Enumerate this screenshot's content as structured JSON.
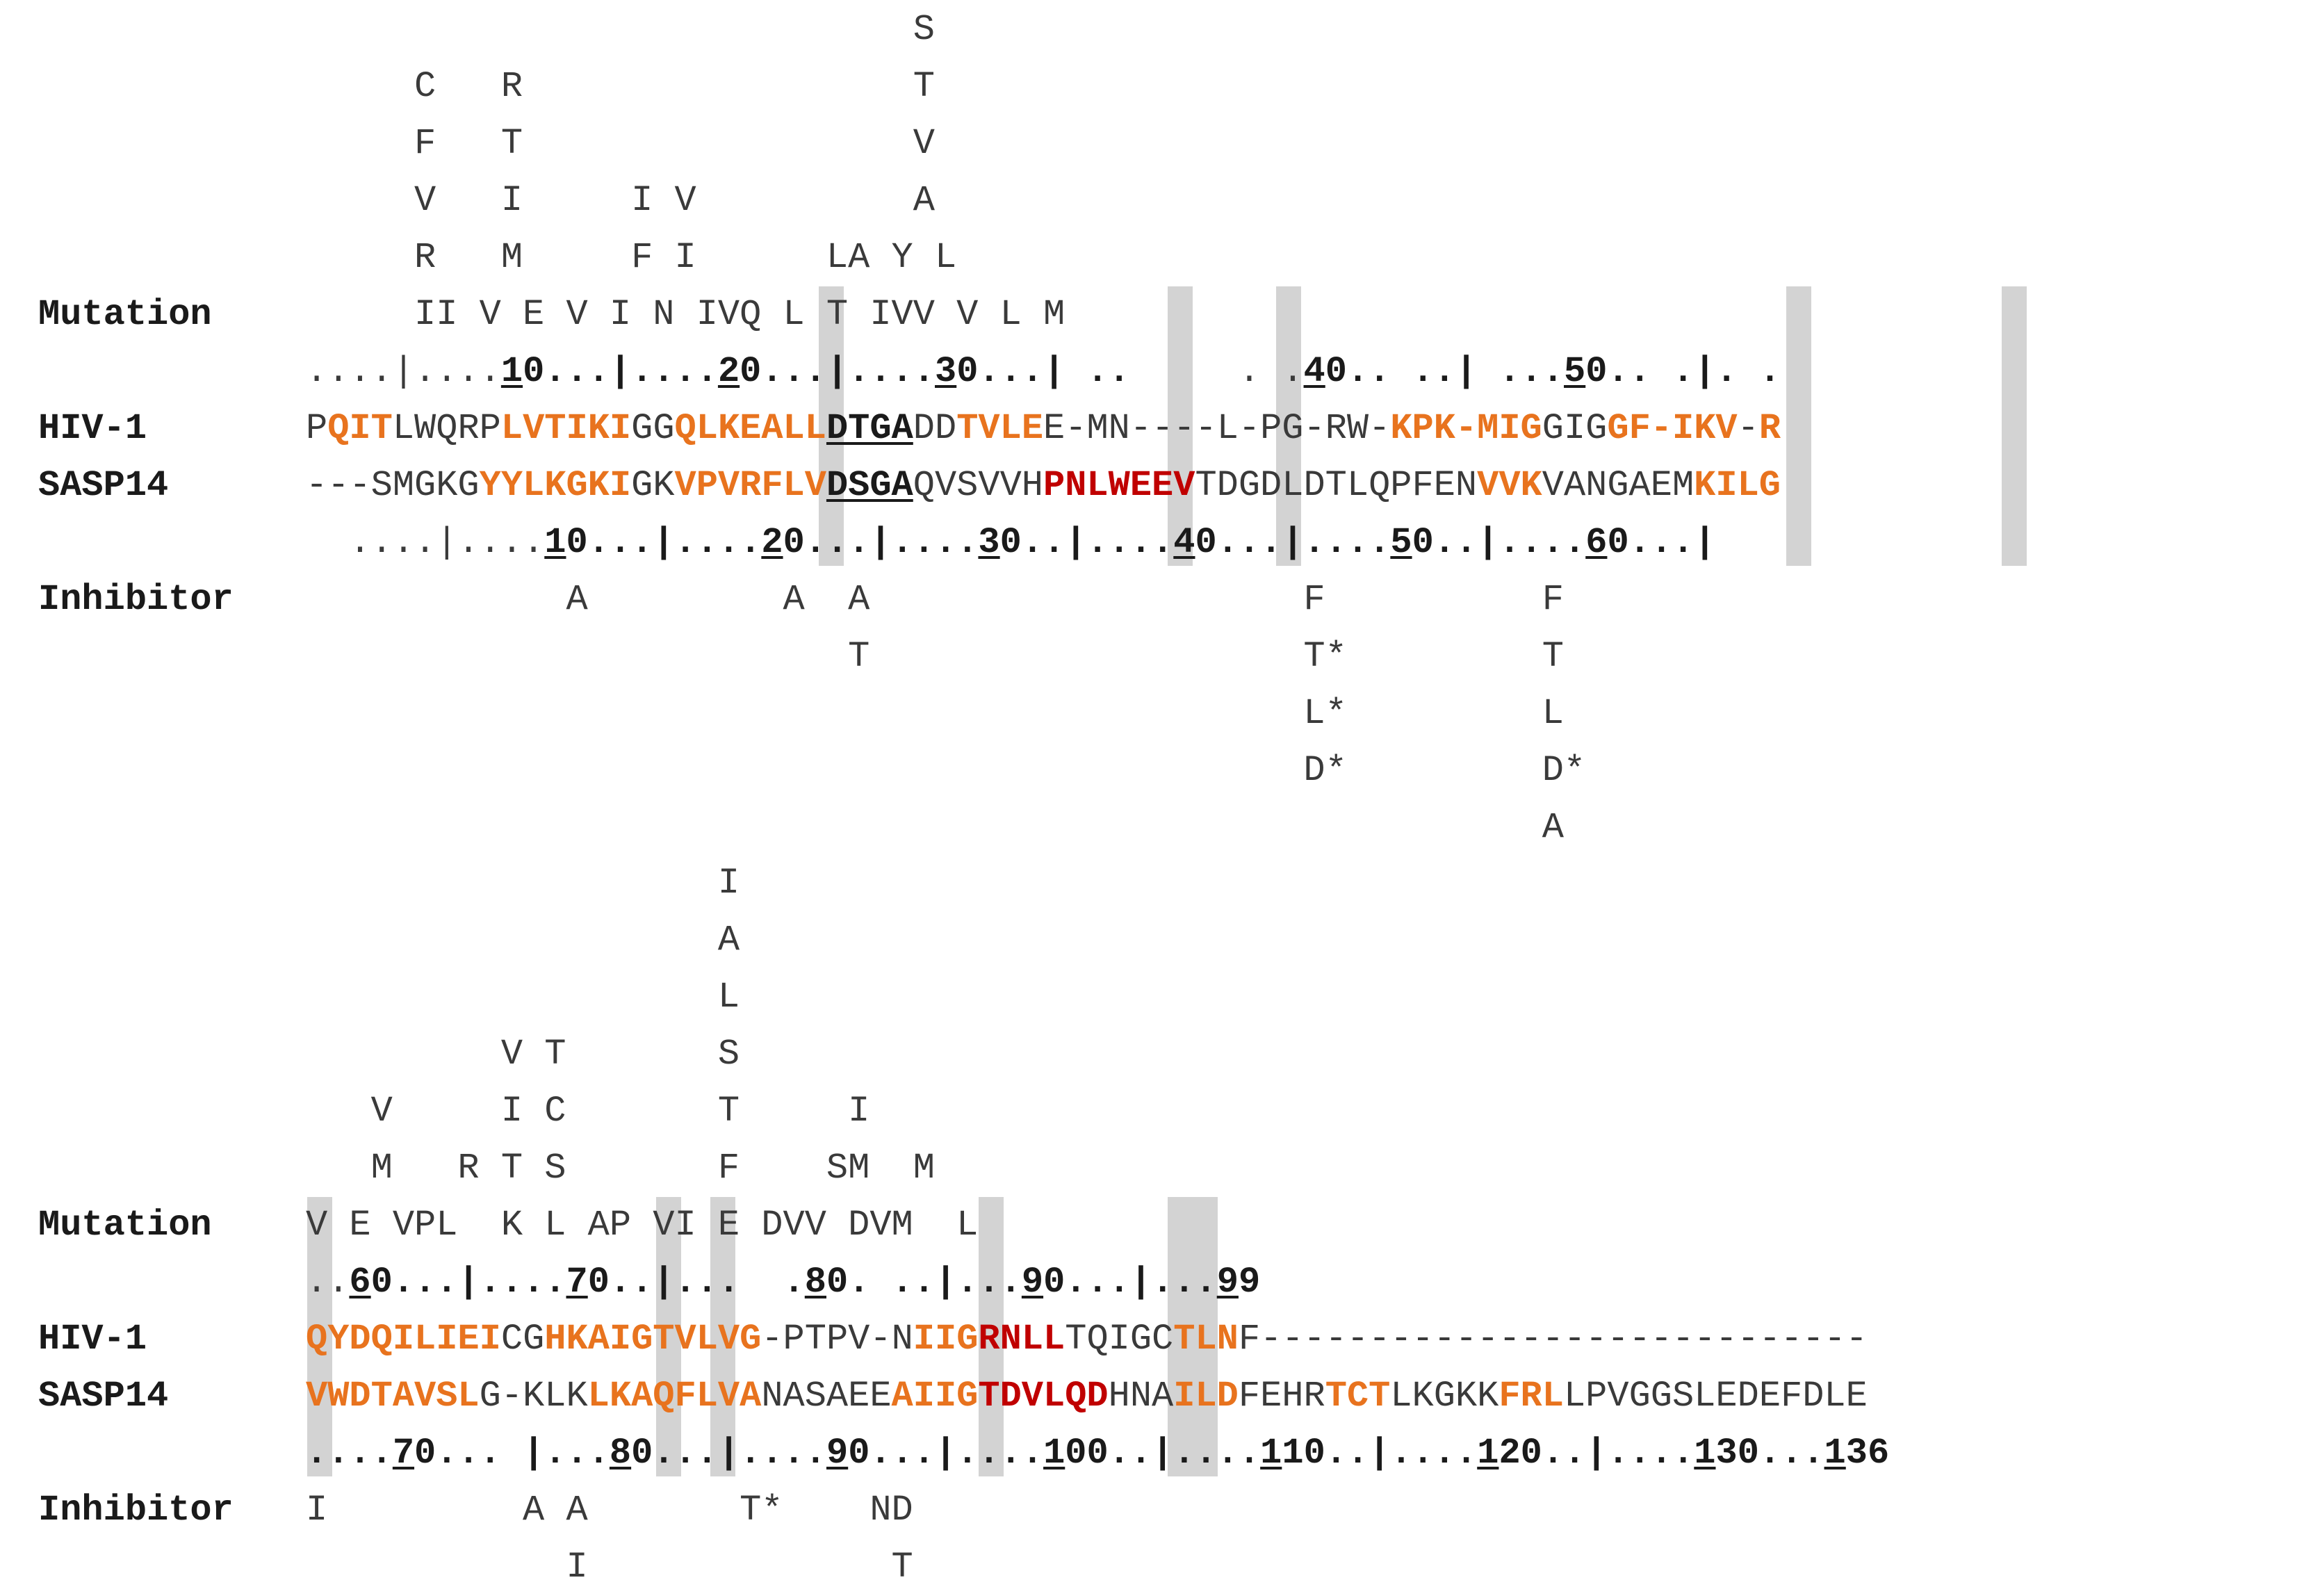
{
  "row_labels": {
    "mutation": "Mutation",
    "hiv": "HIV-1",
    "sasp": "SASP14",
    "inhibitor": "Inhibitor"
  },
  "colors": {
    "hydrophobic_orange": "#e8731e",
    "conserved_red": "#c00000",
    "highlight_gray": "#d3d3d3",
    "text": "#3a3a3a"
  },
  "block1": {
    "mut_lines": [
      "                            S",
      "     C   R                  T",
      "     F   T                  V",
      "     V   I     I V          A",
      "     R   M     F I      LA Y L",
      "     II V E V I N IVQ L T IVV V L M"
    ],
    "hiv_ruler": [
      {
        "t": "....|...."
      },
      {
        "t": "1",
        "c": "bu"
      },
      {
        "t": "0...|....",
        "c": "b"
      },
      {
        "t": "2",
        "c": "bu"
      },
      {
        "t": "0...|....",
        "c": "b"
      },
      {
        "t": "3",
        "c": "bu"
      },
      {
        "t": "0...| .. ",
        "c": "b"
      },
      {
        "t": "    . ."
      },
      {
        "t": "4",
        "c": "bu"
      },
      {
        "t": "0.. ..| ...",
        "c": "b"
      },
      {
        "t": "5",
        "c": "bu"
      },
      {
        "t": "0.. .|. .",
        "c": "b"
      }
    ],
    "hiv_seq": [
      {
        "t": "P"
      },
      {
        "t": "QIT",
        "c": "o"
      },
      {
        "t": "LWQRP"
      },
      {
        "t": "LVTIKI",
        "c": "o"
      },
      {
        "t": "GG"
      },
      {
        "t": "QLKEALL",
        "c": "o"
      },
      {
        "t": "DTGA",
        "c": "bu"
      },
      {
        "t": "DD"
      },
      {
        "t": "TVLE",
        "c": "o"
      },
      {
        "t": "E-MN----L-PG-RW-"
      },
      {
        "t": "KPK-MIG",
        "c": "o"
      },
      {
        "t": "GIG"
      },
      {
        "t": "GF-",
        "c": "o"
      },
      {
        "t": "IKV",
        "c": "o"
      },
      {
        "t": "-"
      },
      {
        "t": "R",
        "c": "o"
      }
    ],
    "sasp_seq": [
      {
        "t": "---SMGKG"
      },
      {
        "t": "YYLKGKI",
        "c": "o"
      },
      {
        "t": "GK"
      },
      {
        "t": "VPVRFLV",
        "c": "o"
      },
      {
        "t": "DSGA",
        "c": "bu"
      },
      {
        "t": "QVSVVH"
      },
      {
        "t": "PNLWEEV",
        "c": "r"
      },
      {
        "t": "TDGDLDTLQPFEN"
      },
      {
        "t": "VVK",
        "c": "o"
      },
      {
        "t": "VANGAEM"
      },
      {
        "t": "KILG",
        "c": "o"
      }
    ],
    "sasp_ruler": [
      {
        "t": "  ....|...."
      },
      {
        "t": "1",
        "c": "bu"
      },
      {
        "t": "0...|....",
        "c": "b"
      },
      {
        "t": "2",
        "c": "bu"
      },
      {
        "t": "0...|....",
        "c": "b"
      },
      {
        "t": "3",
        "c": "bu"
      },
      {
        "t": "0..|....",
        "c": "b"
      },
      {
        "t": "4",
        "c": "bu"
      },
      {
        "t": "0...|....",
        "c": "b"
      },
      {
        "t": "5",
        "c": "bu"
      },
      {
        "t": "0..|....",
        "c": "b"
      },
      {
        "t": "6",
        "c": "bu"
      },
      {
        "t": "0...|",
        "c": "b"
      }
    ],
    "inh_lines": [
      "            A         A  A                    F          F",
      "                         T                    T*         T",
      "                                              L*         L",
      "                                              D*         D*",
      "                                                         A"
    ]
  },
  "block2": {
    "mut_lines": [
      "                   I",
      "                   A",
      "                   L",
      "         V T       S",
      "   V     I C       T     I",
      "   M   R T S       F    SM  M",
      "V E VPL  K L AP VI E DVV DVM  L"
    ],
    "hiv_ruler": [
      {
        "t": ".."
      },
      {
        "t": "6",
        "c": "bu"
      },
      {
        "t": "0...|....",
        "c": "b"
      },
      {
        "t": "7",
        "c": "bu"
      },
      {
        "t": "0..|...  .",
        "c": "b"
      },
      {
        "t": "8",
        "c": "bu"
      },
      {
        "t": "0. ..|...",
        "c": "b"
      },
      {
        "t": "9",
        "c": "bu"
      },
      {
        "t": "0...|...",
        "c": "b"
      },
      {
        "t": "9",
        "c": "bu"
      },
      {
        "t": "9",
        "c": "b"
      }
    ],
    "hiv_seq": [
      {
        "t": "QYDQILIEI",
        "c": "o"
      },
      {
        "t": "CG"
      },
      {
        "t": "HKAIGTVLVG",
        "c": "o"
      },
      {
        "t": "-PTPV-N"
      },
      {
        "t": "IIG",
        "c": "o"
      },
      {
        "t": "RNLL",
        "c": "r"
      },
      {
        "t": "TQIGC"
      },
      {
        "t": "TLN",
        "c": "o"
      },
      {
        "t": "F----------------------------"
      }
    ],
    "sasp_seq": [
      {
        "t": "VWDTAVSL",
        "c": "o"
      },
      {
        "t": "G-KLK"
      },
      {
        "t": "LKAQFLVA",
        "c": "o"
      },
      {
        "t": "NASAEE"
      },
      {
        "t": "AIIG",
        "c": "o"
      },
      {
        "t": "TDVLQD",
        "c": "r"
      },
      {
        "t": "HNA"
      },
      {
        "t": "ILD",
        "c": "o"
      },
      {
        "t": "FEHR"
      },
      {
        "t": "TCT",
        "c": "o"
      },
      {
        "t": "LKGKK"
      },
      {
        "t": "FRL",
        "c": "o"
      },
      {
        "t": "LPVGGSLEDEFDLE"
      }
    ],
    "sasp_ruler": [
      {
        "t": "....",
        "c": "b"
      },
      {
        "t": "7",
        "c": "bu"
      },
      {
        "t": "0... |...",
        "c": "b"
      },
      {
        "t": "8",
        "c": "bu"
      },
      {
        "t": "0...|....",
        "c": "b"
      },
      {
        "t": "9",
        "c": "bu"
      },
      {
        "t": "0...|....",
        "c": "b"
      },
      {
        "t": "1",
        "c": "bu"
      },
      {
        "t": "00..|....",
        "c": "b"
      },
      {
        "t": "1",
        "c": "bu"
      },
      {
        "t": "10..|....",
        "c": "b"
      },
      {
        "t": "1",
        "c": "bu"
      },
      {
        "t": "20..|....",
        "c": "b"
      },
      {
        "t": "1",
        "c": "bu"
      },
      {
        "t": "30...",
        "c": "b"
      },
      {
        "t": "1",
        "c": "bu"
      },
      {
        "t": "36",
        "c": "b"
      }
    ],
    "inh_lines": [
      "I         A A       T*    ND",
      "            I              T"
    ]
  }
}
